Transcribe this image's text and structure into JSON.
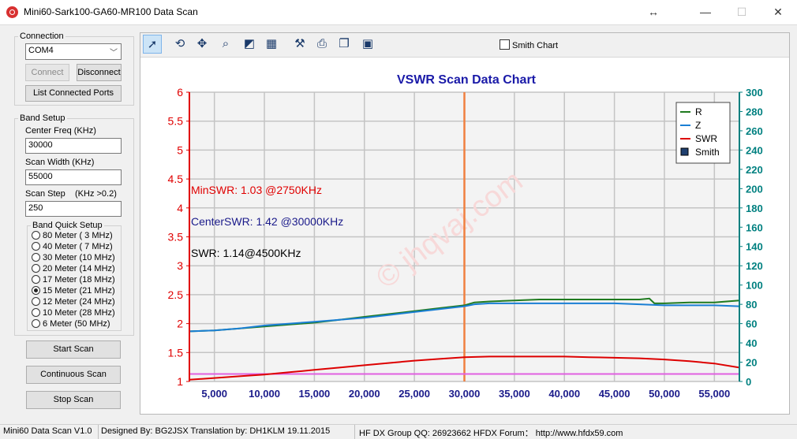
{
  "window": {
    "title": "Mini60-Sark100-GA60-MR100 Data Scan"
  },
  "connection": {
    "group_label": "Connection",
    "port_value": "COM4",
    "connect_label": "Connect",
    "disconnect_label": "Disconnect",
    "list_ports_label": "List Connected Ports"
  },
  "band_setup": {
    "group_label": "Band Setup",
    "center_freq_label": "Center Freq  (KHz)",
    "center_freq_value": "30000",
    "scan_width_label": "Scan Width   (KHz)",
    "scan_width_value": "55000",
    "scan_step_label": "Scan Step",
    "scan_step_hint": "(KHz >0.2)",
    "scan_step_value": "250",
    "quick_label": "Band Quick Setup",
    "bands": [
      {
        "label": "80 Meter (  3 MHz)",
        "selected": false
      },
      {
        "label": "40 Meter (  7 MHz)",
        "selected": false
      },
      {
        "label": "30 Meter (10 MHz)",
        "selected": false
      },
      {
        "label": "20 Meter (14 MHz)",
        "selected": false
      },
      {
        "label": "17 Meter (18 MHz)",
        "selected": false
      },
      {
        "label": "15 Meter (21 MHz)",
        "selected": true
      },
      {
        "label": "12 Meter (24 MHz)",
        "selected": false
      },
      {
        "label": "10 Meter (28 MHz)",
        "selected": false
      },
      {
        "label": "6 Meter  (50 MHz)",
        "selected": false
      }
    ]
  },
  "actions": {
    "start_scan": "Start Scan",
    "continuous_scan": "Continuous Scan",
    "stop_scan": "Stop Scan"
  },
  "toolbar": {
    "smith_chart_label": "Smith Chart",
    "smith_chart_checked": false
  },
  "chart_data": {
    "type": "line",
    "title": "VSWR Scan Data Chart",
    "title_color": "#1a1aa8",
    "xlim": [
      2500,
      57500
    ],
    "x_ticks": [
      "5,000",
      "10,000",
      "15,000",
      "20,000",
      "25,000",
      "30,000",
      "35,000",
      "40,000",
      "45,000",
      "50,000",
      "55,000"
    ],
    "x_tick_values": [
      5000,
      10000,
      15000,
      20000,
      25000,
      30000,
      35000,
      40000,
      45000,
      50000,
      55000
    ],
    "y_left": {
      "min": 1,
      "max": 6,
      "ticks": [
        "1",
        "1.5",
        "2",
        "2.5",
        "3",
        "3.5",
        "4",
        "4.5",
        "5",
        "5.5",
        "6"
      ],
      "color": "#e00000"
    },
    "y_right": {
      "min": 0,
      "max": 300,
      "ticks": [
        "0",
        "20",
        "40",
        "60",
        "80",
        "100",
        "120",
        "140",
        "160",
        "180",
        "200",
        "220",
        "240",
        "260",
        "280",
        "300"
      ],
      "color": "#008080"
    },
    "center_marker_x": 30000,
    "series": [
      {
        "name": "R",
        "color": "#1f7a1f",
        "axis": "right",
        "x": [
          2500,
          5000,
          7500,
          10000,
          12500,
          15000,
          17500,
          20000,
          22500,
          25000,
          27500,
          30000,
          31000,
          32500,
          35000,
          37500,
          40000,
          42500,
          45000,
          47500,
          48500,
          49000,
          50000,
          52500,
          55000,
          57500
        ],
        "y": [
          52,
          53,
          55,
          57,
          59,
          61,
          64,
          67,
          70,
          73,
          76,
          79,
          82,
          83,
          84,
          85,
          85,
          85,
          85,
          85,
          86,
          81,
          81,
          82,
          82,
          84
        ]
      },
      {
        "name": "Z",
        "color": "#1a7fd4",
        "axis": "right",
        "x": [
          2500,
          5000,
          7500,
          10000,
          12500,
          15000,
          17500,
          20000,
          22500,
          25000,
          27500,
          30000,
          31000,
          32500,
          35000,
          37500,
          40000,
          42500,
          45000,
          47500,
          50000,
          52500,
          55000,
          57500
        ],
        "y": [
          52,
          53,
          55,
          58,
          60,
          62,
          64,
          66,
          69,
          72,
          75,
          78,
          80,
          81,
          81,
          81,
          81,
          81,
          81,
          80,
          79,
          79,
          79,
          78
        ]
      },
      {
        "name": "SWR",
        "color": "#dd0000",
        "axis": "left",
        "x": [
          2500,
          5000,
          7500,
          10000,
          12500,
          15000,
          17500,
          20000,
          22500,
          25000,
          27500,
          30000,
          32500,
          35000,
          37500,
          40000,
          42500,
          45000,
          47500,
          50000,
          52500,
          55000,
          57500
        ],
        "y": [
          1.03,
          1.06,
          1.09,
          1.12,
          1.16,
          1.2,
          1.24,
          1.28,
          1.32,
          1.36,
          1.39,
          1.42,
          1.43,
          1.43,
          1.43,
          1.43,
          1.42,
          1.41,
          1.4,
          1.38,
          1.35,
          1.31,
          1.24
        ]
      },
      {
        "name": "Smith",
        "color": "#1f3f6f",
        "axis": "left",
        "marker": "square",
        "x": [],
        "y": []
      }
    ],
    "reference_line": {
      "color": "#e060e0",
      "axis": "left",
      "y": 1.13
    },
    "annotations": [
      {
        "text": "MinSWR: 1.03 @2750KHz",
        "color": "#e00000"
      },
      {
        "text": "CenterSWR: 1.42 @30000KHz",
        "color": "#1a1a8a"
      },
      {
        "text": "SWR: 1.14@4500KHz",
        "color": "#000000"
      }
    ],
    "watermark": "© jhqvaj.com",
    "legend_position": "top-right",
    "grid": true
  },
  "status": {
    "version": "Mini60 Data Scan V1.0",
    "credits": "Designed By: BG2JSX  Translation by: DH1KLM   19.11.2015",
    "group": "HF DX Group QQ: 26923662  HFDX Forum：  http://www.hfdx59.com"
  }
}
